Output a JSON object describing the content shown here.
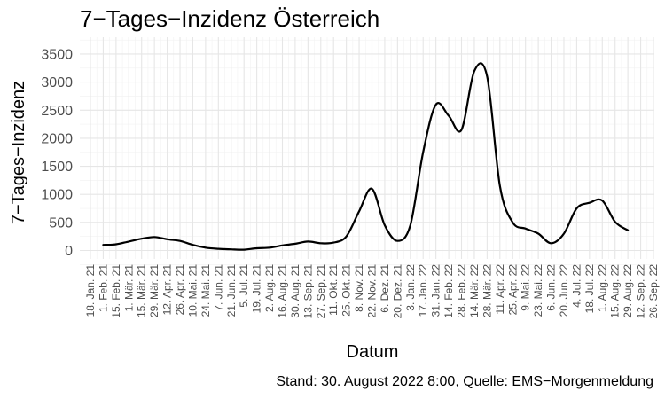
{
  "chart_data": {
    "type": "line",
    "title": "7−Tages−Inzidenz Österreich",
    "xlabel": "Datum",
    "ylabel": "7−Tages−Inzidenz",
    "caption": "Stand: 30. August 2022 8:00, Quelle: EMS−Morgenmeldung",
    "ylim": [
      -150,
      3800
    ],
    "yticks": [
      0,
      500,
      1000,
      1500,
      2000,
      2500,
      3000,
      3500
    ],
    "xticks": [
      "18. Jan. 21",
      "1. Feb. 21",
      "15. Feb. 21",
      "1. Mär. 21",
      "15. Mär. 21",
      "29. Mär. 21",
      "12. Apr. 21",
      "26. Apr. 21",
      "10. Mai. 21",
      "24. Mai. 21",
      "7. Jun. 21",
      "21. Jun. 21",
      "5. Jul. 21",
      "19. Jul. 21",
      "2. Aug. 21",
      "16. Aug. 21",
      "30. Aug. 21",
      "13. Sep. 21",
      "27. Sep. 21",
      "11. Okt. 21",
      "25. Okt. 21",
      "8. Nov. 21",
      "22. Nov. 21",
      "6. Dez. 21",
      "20. Dez. 21",
      "3. Jan. 22",
      "17. Jan. 22",
      "31. Jan. 22",
      "14. Feb. 22",
      "28. Feb. 22",
      "14. Mär. 22",
      "28. Mär. 22",
      "11. Apr. 22",
      "25. Apr. 22",
      "9. Mai. 22",
      "23. Mai. 22",
      "6. Jun. 22",
      "20. Jun. 22",
      "4. Jul. 22",
      "18. Jul. 22",
      "1. Aug. 22",
      "15. Aug. 22",
      "29. Aug. 22",
      "12. Sep. 22",
      "26. Sep. 22"
    ],
    "grid": true,
    "series": [
      {
        "color": "#000000",
        "x": [
          "1. Feb. 21",
          "15. Feb. 21",
          "1. Mär. 21",
          "15. Mär. 21",
          "29. Mär. 21",
          "12. Apr. 21",
          "26. Apr. 21",
          "10. Mai. 21",
          "24. Mai. 21",
          "7. Jun. 21",
          "21. Jun. 21",
          "5. Jul. 21",
          "19. Jul. 21",
          "2. Aug. 21",
          "16. Aug. 21",
          "30. Aug. 21",
          "13. Sep. 21",
          "27. Sep. 21",
          "11. Okt. 21",
          "25. Okt. 21",
          "8. Nov. 21",
          "22. Nov. 21",
          "6. Dez. 21",
          "20. Dez. 21",
          "3. Jan. 22",
          "17. Jan. 22",
          "31. Jan. 22",
          "14. Feb. 22",
          "28. Feb. 22",
          "14. Mär. 22",
          "28. Mär. 22",
          "11. Apr. 22",
          "25. Apr. 22",
          "9. Mai. 22",
          "23. Mai. 22",
          "6. Jun. 22",
          "20. Jun. 22",
          "4. Jul. 22",
          "18. Jul. 22",
          "1. Aug. 22",
          "15. Aug. 22",
          "29. Aug. 22"
        ],
        "values": [
          100,
          110,
          160,
          210,
          240,
          200,
          170,
          100,
          50,
          30,
          20,
          15,
          40,
          50,
          90,
          120,
          160,
          130,
          140,
          250,
          700,
          1100,
          450,
          170,
          450,
          1750,
          2600,
          2400,
          2150,
          3200,
          3100,
          1150,
          500,
          390,
          300,
          130,
          300,
          750,
          850,
          890,
          510,
          360
        ]
      }
    ]
  }
}
